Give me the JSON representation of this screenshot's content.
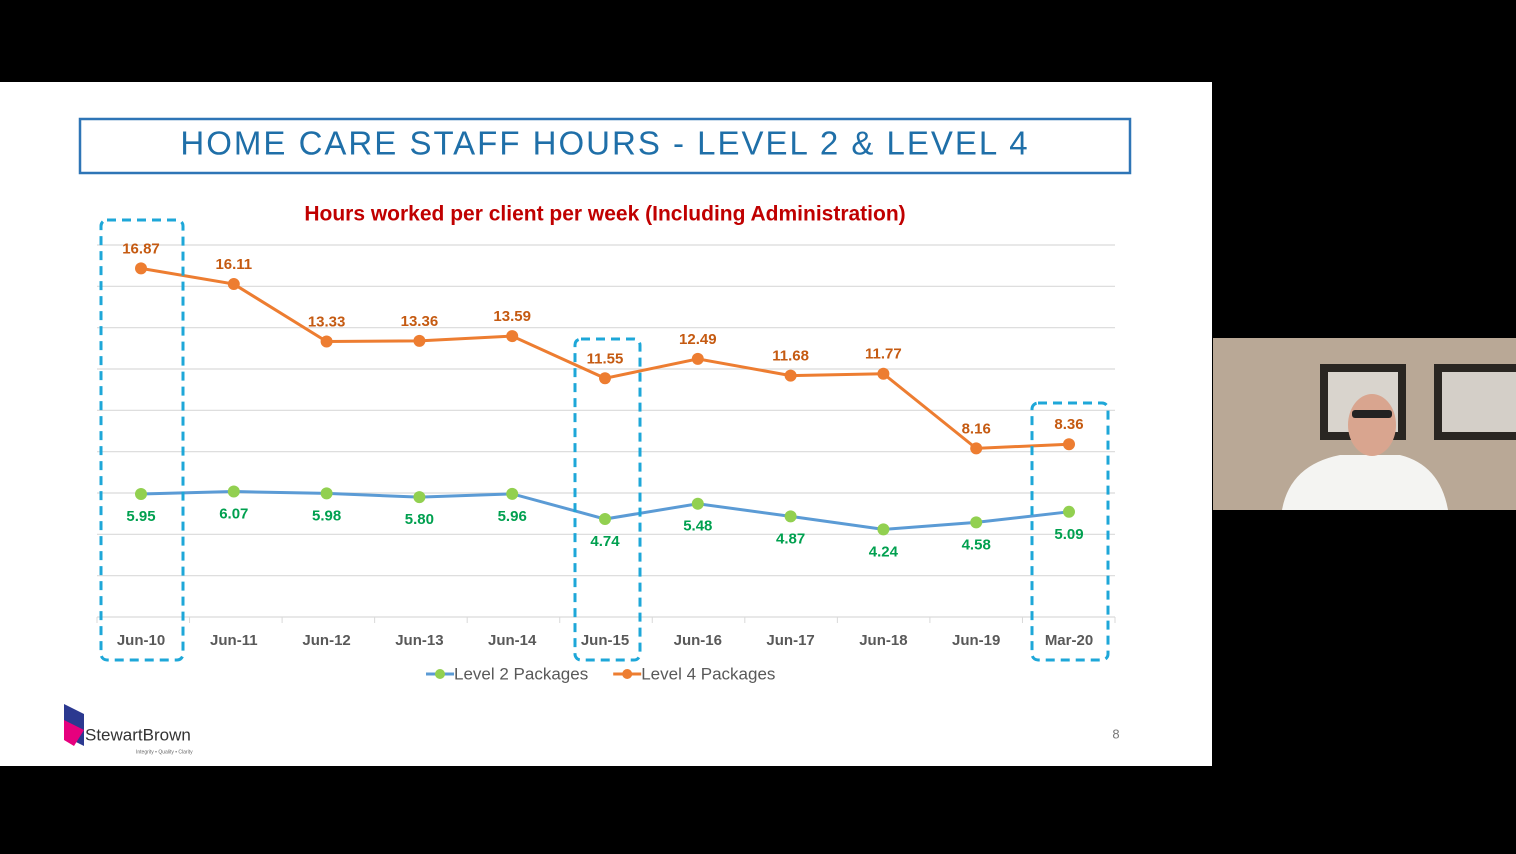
{
  "slide": {
    "title": "HOME CARE STAFF HOURS - LEVEL 2 & LEVEL 4",
    "logo": "StewartBrown",
    "tagline": "Integrity • Quality • Clarity",
    "page_number": "8"
  },
  "chart_data": {
    "type": "line",
    "title": "Hours worked per client per week (Including Administration)",
    "categories": [
      "Jun-10",
      "Jun-11",
      "Jun-12",
      "Jun-13",
      "Jun-14",
      "Jun-15",
      "Jun-16",
      "Jun-17",
      "Jun-18",
      "Jun-19",
      "Mar-20"
    ],
    "series": [
      {
        "name": "Level 2 Packages",
        "color": "#5b9bd5",
        "marker_color": "#92d050",
        "label_color": "#00a04f",
        "values": [
          5.95,
          6.07,
          5.98,
          5.8,
          5.96,
          4.74,
          5.48,
          4.87,
          4.24,
          4.58,
          5.09
        ],
        "value_labels": [
          "5.95",
          "6.07",
          "5.98",
          "5.80",
          "5.96",
          "4.74",
          "5.48",
          "4.87",
          "4.24",
          "4.58",
          "5.09"
        ]
      },
      {
        "name": "Level 4 Packages",
        "color": "#ed7d31",
        "marker_color": "#ed7d31",
        "label_color": "#c55a11",
        "values": [
          16.87,
          16.11,
          13.33,
          13.36,
          13.59,
          11.55,
          12.49,
          11.68,
          11.77,
          8.16,
          8.36
        ],
        "value_labels": [
          "16.87",
          "16.11",
          "13.33",
          "13.36",
          "13.59",
          "11.55",
          "12.49",
          "11.68",
          "11.77",
          "8.16",
          "8.36"
        ]
      }
    ],
    "ylim": [
      0,
      18
    ],
    "yticks": [
      0,
      2,
      4,
      6,
      8,
      10,
      12,
      14,
      16,
      18
    ],
    "grid": true,
    "legend": "bottom"
  }
}
